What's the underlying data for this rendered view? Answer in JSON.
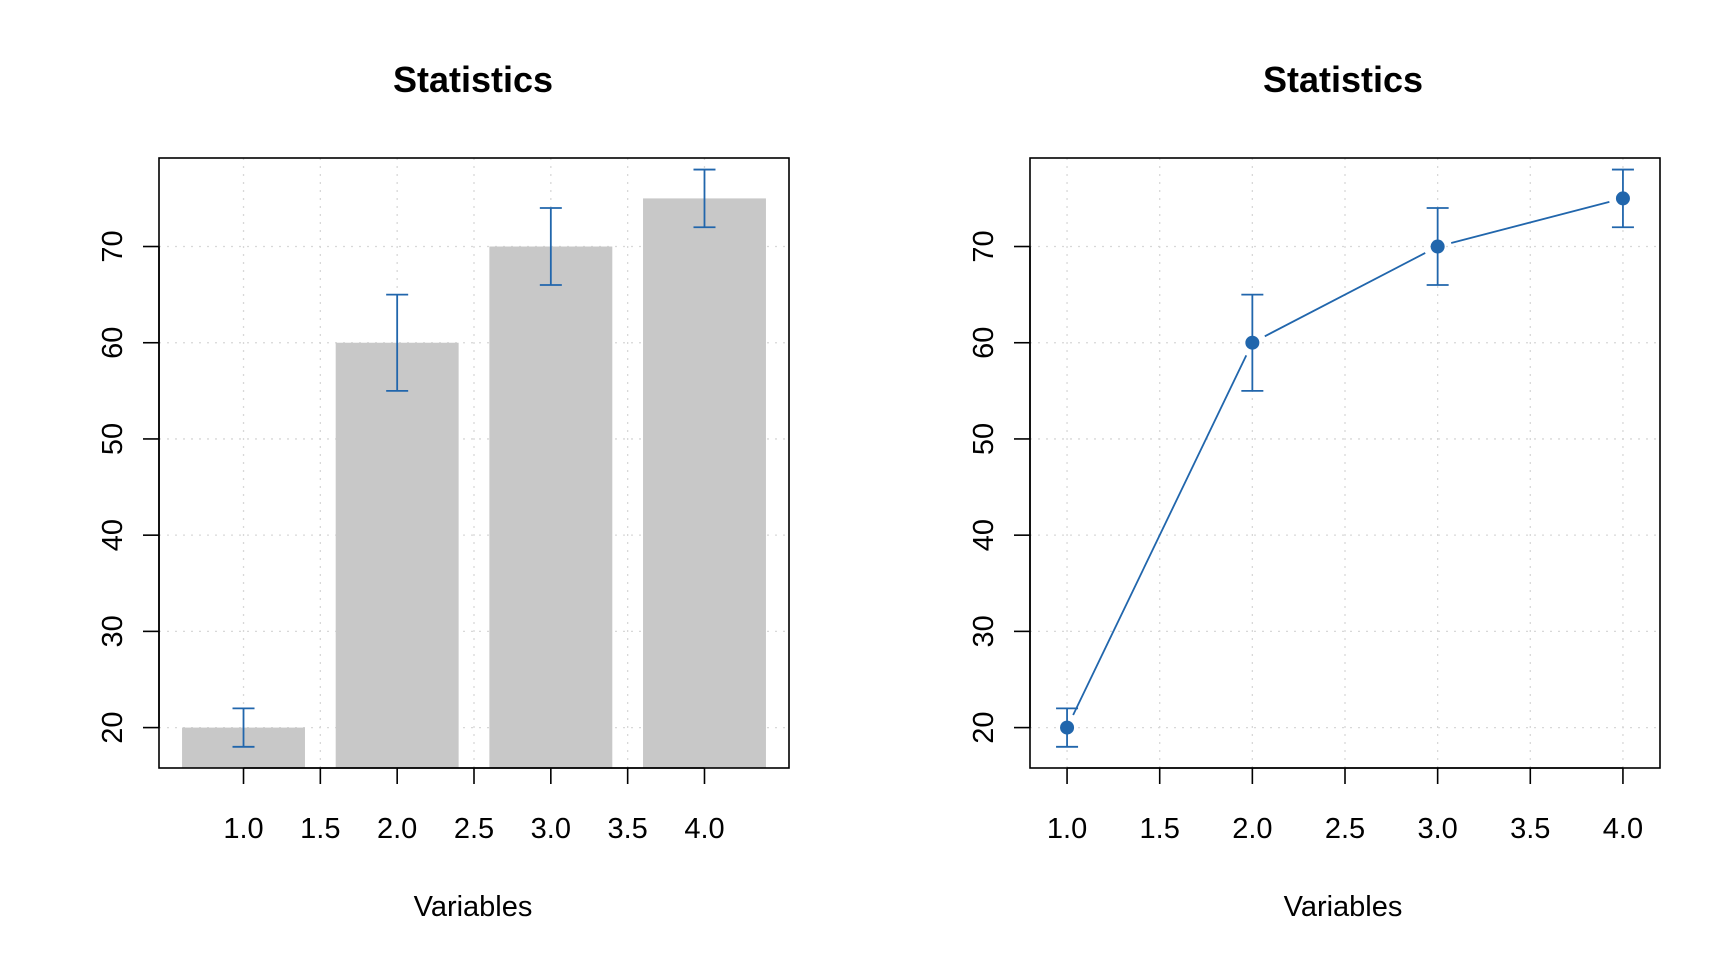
{
  "chart_data": [
    {
      "type": "bar",
      "title": "Statistics",
      "xlabel": "Variables",
      "ylabel": "",
      "x": [
        1,
        2,
        3,
        4
      ],
      "values": [
        20,
        60,
        70,
        75
      ],
      "errors": [
        2,
        5,
        4,
        3
      ],
      "xlim": [
        0.45,
        4.55
      ],
      "ylim": [
        15.8,
        79.2
      ],
      "xticks": [
        "1.0",
        "1.5",
        "2.0",
        "2.5",
        "3.0",
        "3.5",
        "4.0"
      ],
      "yticks": [
        "20",
        "30",
        "40",
        "50",
        "60",
        "70"
      ],
      "grid": true,
      "bar_color": "#c8c8c8",
      "error_color": "#2166ac"
    },
    {
      "type": "line",
      "title": "Statistics",
      "xlabel": "Variables",
      "ylabel": "",
      "x": [
        1,
        2,
        3,
        4
      ],
      "values": [
        20,
        60,
        70,
        75
      ],
      "errors": [
        2,
        5,
        4,
        3
      ],
      "xlim": [
        0.8,
        4.2
      ],
      "ylim": [
        15.8,
        79.2
      ],
      "xticks": [
        "1.0",
        "1.5",
        "2.0",
        "2.5",
        "3.0",
        "3.5",
        "4.0"
      ],
      "yticks": [
        "20",
        "30",
        "40",
        "50",
        "60",
        "70"
      ],
      "grid": true,
      "line_color": "#2166ac"
    }
  ]
}
